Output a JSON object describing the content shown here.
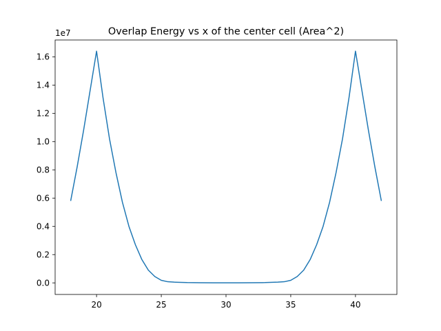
{
  "chart_data": {
    "type": "line",
    "title": "Overlap Energy vs x of the center cell (Area^2)",
    "xlabel": "",
    "ylabel": "",
    "y_offset_label": "1e7",
    "xlim": [
      16.8,
      43.2
    ],
    "ylim": [
      -0.082,
      1.719
    ],
    "x_ticks": [
      20,
      25,
      30,
      35,
      40
    ],
    "x_tick_labels": [
      "20",
      "25",
      "30",
      "35",
      "40"
    ],
    "y_ticks": [
      0.0,
      0.2,
      0.4,
      0.6,
      0.8,
      1.0,
      1.2,
      1.4,
      1.6
    ],
    "y_tick_labels": [
      "0.0",
      "0.2",
      "0.4",
      "0.6",
      "0.8",
      "1.0",
      "1.2",
      "1.4",
      "1.6"
    ],
    "grid": false,
    "legend": "none",
    "series": [
      {
        "color": "#1f77b4",
        "x": [
          18,
          18.5,
          19,
          19.5,
          20,
          20.5,
          21,
          21.5,
          22,
          22.5,
          23,
          23.5,
          24,
          24.5,
          25,
          25.5,
          26,
          27,
          28,
          29,
          30,
          31,
          32,
          33,
          34,
          34.5,
          35,
          35.5,
          36,
          36.5,
          37,
          37.5,
          38,
          38.5,
          39,
          39.5,
          40,
          40.5,
          41,
          41.5,
          42
        ],
        "y": [
          0.58,
          0.82,
          1.08,
          1.36,
          1.64,
          1.31,
          1.02,
          0.78,
          0.57,
          0.4,
          0.27,
          0.165,
          0.09,
          0.045,
          0.018,
          0.008,
          0.005,
          0.002,
          0.001,
          0.0005,
          0.0003,
          0.0005,
          0.001,
          0.002,
          0.005,
          0.008,
          0.018,
          0.045,
          0.09,
          0.165,
          0.27,
          0.4,
          0.57,
          0.78,
          1.02,
          1.31,
          1.64,
          1.36,
          1.08,
          0.82,
          0.58
        ]
      }
    ]
  }
}
